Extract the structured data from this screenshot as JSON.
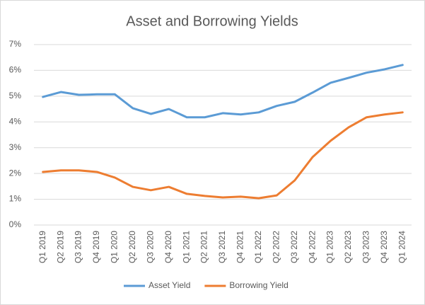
{
  "chart_data": {
    "type": "line",
    "title": "Asset and Borrowing Yields",
    "categories": [
      "Q1 2019",
      "Q2 2019",
      "Q3 2019",
      "Q4 2019",
      "Q1 2020",
      "Q2 2020",
      "Q3 2020",
      "Q4 2020",
      "Q1 2021",
      "Q2 2021",
      "Q3 2021",
      "Q4 2021",
      "Q1 2022",
      "Q2 2022",
      "Q3 2022",
      "Q4 2022",
      "Q1 2023",
      "Q2 2023",
      "Q3 2023",
      "Q4 2023",
      "Q1 2024"
    ],
    "series": [
      {
        "name": "Asset Yield",
        "color": "#5b9bd5",
        "values": [
          4.97,
          5.16,
          5.05,
          5.07,
          5.07,
          4.53,
          4.31,
          4.5,
          4.18,
          4.18,
          4.34,
          4.29,
          4.37,
          4.62,
          4.78,
          5.14,
          5.52,
          5.71,
          5.91,
          6.04,
          6.21
        ]
      },
      {
        "name": "Borrowing Yield",
        "color": "#ed7d31",
        "values": [
          2.06,
          2.12,
          2.12,
          2.06,
          1.84,
          1.48,
          1.35,
          1.48,
          1.21,
          1.13,
          1.07,
          1.1,
          1.04,
          1.15,
          1.73,
          2.64,
          3.27,
          3.79,
          4.18,
          4.29,
          4.37
        ]
      }
    ],
    "ylim": [
      0,
      7
    ],
    "yticks": [
      {
        "value": 0,
        "label": "0%"
      },
      {
        "value": 1,
        "label": "1%"
      },
      {
        "value": 2,
        "label": "2%"
      },
      {
        "value": 3,
        "label": "3%"
      },
      {
        "value": 4,
        "label": "4%"
      },
      {
        "value": 5,
        "label": "5%"
      },
      {
        "value": 6,
        "label": "6%"
      },
      {
        "value": 7,
        "label": "7%"
      }
    ],
    "grid": true,
    "legend": "bottom"
  }
}
